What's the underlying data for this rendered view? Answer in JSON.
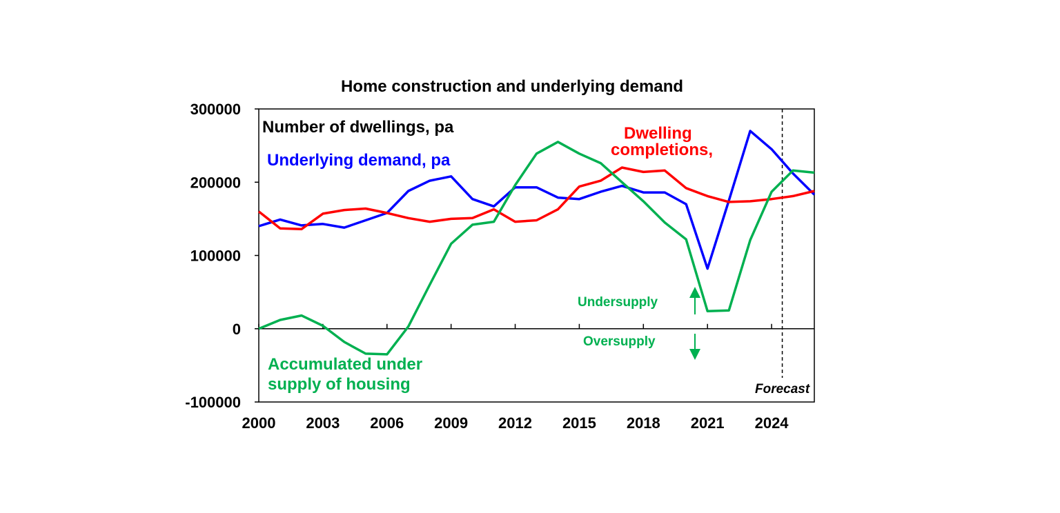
{
  "chart_data": {
    "type": "line",
    "title": "Home construction and underlying demand",
    "ylim": [
      -100000,
      300000
    ],
    "yticks": [
      -100000,
      0,
      100000,
      200000,
      300000
    ],
    "xlim": [
      2000,
      2026
    ],
    "xticks": [
      2000,
      2003,
      2006,
      2009,
      2012,
      2015,
      2018,
      2021,
      2024
    ],
    "forecast_start": 2024.5,
    "grid": false,
    "series": [
      {
        "key": "demand",
        "color": "#0000ff",
        "x": [
          2000,
          2001,
          2002,
          2003,
          2004,
          2005,
          2006,
          2007,
          2008,
          2009,
          2010,
          2011,
          2012,
          2013,
          2014,
          2015,
          2016,
          2017,
          2018,
          2019,
          2020,
          2021,
          2022,
          2023,
          2024,
          2025,
          2026
        ],
        "values": [
          140000,
          149000,
          141000,
          143000,
          138000,
          148000,
          158000,
          188000,
          202000,
          208000,
          177000,
          167000,
          193000,
          193000,
          179000,
          177000,
          187000,
          195000,
          186000,
          186000,
          170000,
          82000,
          175000,
          270000,
          245000,
          212000,
          183000
        ]
      },
      {
        "key": "completions",
        "color": "#ff0000",
        "x": [
          2000,
          2001,
          2002,
          2003,
          2004,
          2005,
          2006,
          2007,
          2008,
          2009,
          2010,
          2011,
          2012,
          2013,
          2014,
          2015,
          2016,
          2017,
          2018,
          2019,
          2020,
          2021,
          2022,
          2023,
          2024,
          2025,
          2026
        ],
        "values": [
          160000,
          137000,
          136000,
          157000,
          162000,
          164000,
          158000,
          151000,
          146000,
          150000,
          151000,
          163000,
          146000,
          148000,
          163000,
          194000,
          202000,
          220000,
          214000,
          216000,
          192000,
          181000,
          173000,
          174000,
          177000,
          181000,
          188000
        ]
      },
      {
        "key": "accumulated",
        "color": "#00b050",
        "x": [
          2000,
          2001,
          2002,
          2003,
          2004,
          2005,
          2006,
          2007,
          2008,
          2009,
          2010,
          2011,
          2012,
          2013,
          2014,
          2015,
          2016,
          2017,
          2018,
          2019,
          2020,
          2021,
          2022,
          2023,
          2024,
          2025,
          2026
        ],
        "values": [
          0,
          12000,
          18000,
          4000,
          -18000,
          -34000,
          -35000,
          3000,
          60000,
          116000,
          142000,
          146000,
          196000,
          239000,
          255000,
          239000,
          226000,
          200000,
          174000,
          145000,
          122000,
          24000,
          25000,
          121000,
          187000,
          216000,
          213000
        ]
      }
    ],
    "annotations": {
      "units": "Number of dwellings, pa",
      "demand_label": "Underlying demand, pa",
      "completions_label_1": "Dwelling",
      "completions_label_2": "completions,",
      "accum_label_1": "Accumulated under",
      "accum_label_2": "supply of housing",
      "undersupply": "Undersupply",
      "oversupply": "Oversupply",
      "forecast": "Forecast"
    }
  }
}
